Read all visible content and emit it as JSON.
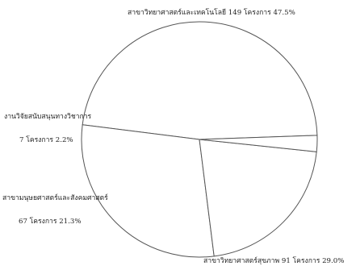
{
  "chart_data": {
    "type": "pie",
    "categories": [
      "สาขาวิทยาศาสตร์และเทคโนโลยี",
      "สาขาวิทยาศาสตร์สุขภาพ",
      "สาขามนุษยศาสตร์และสังคมศาสตร์",
      "งานวิจัยสนับสนุนทางวิชาการ"
    ],
    "values": [
      149,
      91,
      67,
      7
    ],
    "percentages": [
      47.5,
      29.0,
      21.3,
      2.2
    ],
    "labels": [
      {
        "lines": [
          "สาขาวิทยาศาสตร์และเทคโนโลยี 149 โครงการ 47.5%"
        ]
      },
      {
        "lines": [
          "สาขาวิทยาศาสตร์สุขภาพ 91 โครงการ 29.0%"
        ]
      },
      {
        "lines": [
          "สาขามนุษยศาสตร์และสังคมศาสตร์",
          "67 โครงการ 21.3%"
        ]
      },
      {
        "lines": [
          "งานวิจัยสนับสนุนทางวิชาการ",
          "7 โครงการ 2.2%"
        ]
      }
    ],
    "colors": [
      "#ffffff",
      "#ffffff",
      "#ffffff",
      "#ffffff"
    ],
    "line_color": "#555555",
    "title": "",
    "legend": "none"
  }
}
